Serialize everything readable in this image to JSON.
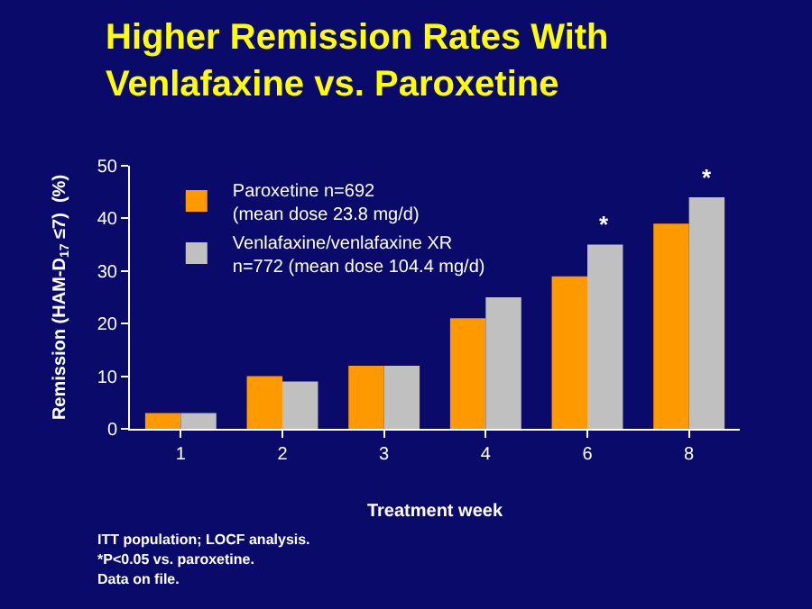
{
  "chart_data": {
    "type": "bar",
    "title": "Higher Remission Rates With\nVenlafaxine vs. Paroxetine",
    "categories": [
      "1",
      "2",
      "3",
      "4",
      "6",
      "8"
    ],
    "series": [
      {
        "name": "Paroxetine n=692\n(mean dose 23.8 mg/d)",
        "color": "#ff9900",
        "values": [
          3,
          10,
          12,
          21,
          29,
          39
        ]
      },
      {
        "name": "Venlafaxine/venlafaxine XR\nn=772 (mean dose 104.4 mg/d)",
        "color": "#c0c0c0",
        "values": [
          3,
          9,
          12,
          25,
          35,
          44
        ]
      }
    ],
    "xlabel": "Treatment week",
    "ylabel": "Remission (HAM-D$_{17}$ ≤7)  (%)",
    "ylim": [
      0,
      50
    ],
    "yticks": [
      0,
      10,
      20,
      30,
      40,
      50
    ],
    "grid": false,
    "legend": "top left",
    "annotations": [
      {
        "text": "*",
        "x": "6",
        "y": 35
      },
      {
        "text": "*",
        "x": "8",
        "y": 44
      },
      "ITT population; LOCF analysis.",
      "*P<0.05 vs. paroxetine.",
      "Data on file."
    ]
  }
}
